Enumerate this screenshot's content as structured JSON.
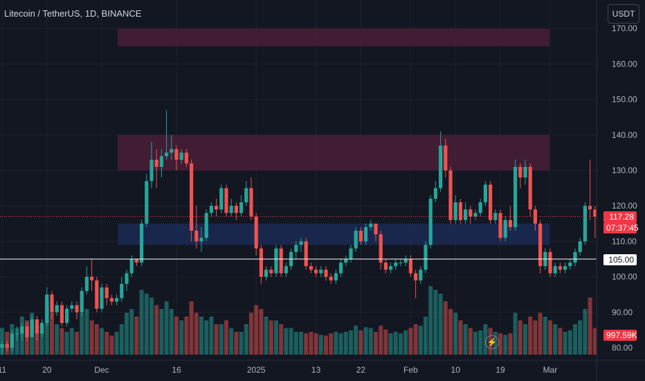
{
  "header": {
    "title": "Litecoin / TetherUS, 1D, BINANCE",
    "currency_button": "USDT"
  },
  "price_axis": {
    "labels": [
      "170.00",
      "160.00",
      "150.00",
      "140.00",
      "130.00",
      "120.00",
      "110.00",
      "100.00",
      "90.00",
      "80.00"
    ]
  },
  "time_axis": {
    "labels": [
      "11",
      "20",
      "Dec",
      "16",
      "2025",
      "13",
      "22",
      "Feb",
      "10",
      "19",
      "Mar"
    ]
  },
  "tags": {
    "last_price": "117.28",
    "countdown": "07:37:45",
    "line_price": "105.00",
    "volume": "997.59K"
  },
  "colors": {
    "background": "#131722",
    "up": "#26a69a",
    "down": "#ef5350",
    "supply_zone": "#4a1f37",
    "demand_zone": "#1c2a55"
  },
  "icons": {
    "alert": "lightning-icon"
  },
  "chart_data": {
    "type": "candlestick",
    "symbol": "Litecoin / TetherUS",
    "interval": "1D",
    "exchange": "BINANCE",
    "ylim": [
      80,
      173
    ],
    "horizontal_line": 105,
    "zones": [
      {
        "kind": "supply",
        "low": 165,
        "high": 170
      },
      {
        "kind": "supply",
        "low": 130,
        "high": 140
      },
      {
        "kind": "demand",
        "low": 109,
        "high": 115
      }
    ],
    "candles": [
      [
        80,
        81,
        78,
        82,
        0.35
      ],
      [
        81,
        80,
        79,
        82,
        0.3
      ],
      [
        80,
        84,
        79,
        85,
        0.4
      ],
      [
        84,
        84,
        82,
        86,
        0.35
      ],
      [
        84,
        86,
        82,
        87,
        0.5
      ],
      [
        86,
        83,
        82,
        87,
        0.45
      ],
      [
        83,
        88,
        83,
        89,
        0.55
      ],
      [
        88,
        84,
        82,
        89,
        0.4
      ],
      [
        84,
        87,
        83,
        88,
        0.38
      ],
      [
        87,
        95,
        86,
        97,
        0.7
      ],
      [
        95,
        90,
        88,
        96,
        0.55
      ],
      [
        90,
        92,
        89,
        93,
        0.4
      ],
      [
        92,
        87,
        86,
        93,
        0.35
      ],
      [
        87,
        91,
        86,
        92,
        0.3
      ],
      [
        91,
        92,
        90,
        93,
        0.35
      ],
      [
        92,
        90,
        88,
        93,
        0.3
      ],
      [
        90,
        96,
        89,
        97,
        0.55
      ],
      [
        96,
        100,
        95,
        103,
        0.6
      ],
      [
        100,
        99,
        96,
        105,
        0.45
      ],
      [
        99,
        91,
        90,
        100,
        0.4
      ],
      [
        91,
        97,
        90,
        98,
        0.35
      ],
      [
        97,
        94,
        92,
        98,
        0.3
      ],
      [
        94,
        93,
        92,
        95,
        0.25
      ],
      [
        93,
        94,
        92,
        95,
        0.3
      ],
      [
        94,
        98,
        93,
        100,
        0.4
      ],
      [
        98,
        101,
        96,
        102,
        0.55
      ],
      [
        101,
        105,
        100,
        106,
        0.6
      ],
      [
        105,
        104,
        103,
        105,
        0.5
      ],
      [
        104,
        115,
        103,
        116,
        0.85
      ],
      [
        115,
        127,
        114,
        129,
        0.8
      ],
      [
        127,
        133,
        125,
        138,
        0.75
      ],
      [
        133,
        131,
        125,
        136,
        0.65
      ],
      [
        131,
        134,
        128,
        136,
        0.6
      ],
      [
        134,
        135,
        133,
        147,
        0.7
      ],
      [
        135,
        136,
        133,
        140,
        0.6
      ],
      [
        136,
        133,
        130,
        137,
        0.5
      ],
      [
        133,
        135,
        132,
        136,
        0.45
      ],
      [
        135,
        132,
        131,
        136,
        0.5
      ],
      [
        132,
        113,
        110,
        133,
        0.7
      ],
      [
        113,
        110,
        108,
        120,
        0.55
      ],
      [
        110,
        111,
        107,
        114,
        0.5
      ],
      [
        111,
        118,
        110,
        119,
        0.45
      ],
      [
        118,
        120,
        117,
        121,
        0.5
      ],
      [
        120,
        119,
        117,
        122,
        0.4
      ],
      [
        119,
        125,
        118,
        126,
        0.4
      ],
      [
        125,
        118,
        117,
        126,
        0.45
      ],
      [
        118,
        120,
        117,
        122,
        0.35
      ],
      [
        120,
        118,
        116,
        121,
        0.3
      ],
      [
        118,
        121,
        117,
        123,
        0.3
      ],
      [
        121,
        125,
        120,
        127,
        0.4
      ],
      [
        125,
        117,
        116,
        128,
        0.55
      ],
      [
        117,
        108,
        106,
        118,
        0.65
      ],
      [
        108,
        100,
        98,
        109,
        0.6
      ],
      [
        100,
        102,
        99,
        103,
        0.5
      ],
      [
        102,
        101,
        100,
        103,
        0.45
      ],
      [
        101,
        108,
        100,
        109,
        0.45
      ],
      [
        108,
        101,
        100,
        109,
        0.4
      ],
      [
        101,
        103,
        100,
        104,
        0.35
      ],
      [
        103,
        107,
        102,
        108,
        0.35
      ],
      [
        107,
        109,
        105,
        110,
        0.3
      ],
      [
        109,
        110,
        107,
        111,
        0.3
      ],
      [
        110,
        103,
        102,
        111,
        0.28
      ],
      [
        103,
        102,
        101,
        104,
        0.3
      ],
      [
        102,
        101,
        100,
        103,
        0.28
      ],
      [
        101,
        102,
        100,
        103,
        0.26
      ],
      [
        102,
        100,
        99,
        103,
        0.25
      ],
      [
        100,
        99,
        98,
        101,
        0.28
      ],
      [
        99,
        101,
        98,
        102,
        0.3
      ],
      [
        101,
        104,
        100,
        105,
        0.28
      ],
      [
        104,
        105,
        103,
        106,
        0.3
      ],
      [
        105,
        108,
        104,
        109,
        0.32
      ],
      [
        108,
        113,
        107,
        114,
        0.38
      ],
      [
        113,
        110,
        109,
        114,
        0.32
      ],
      [
        110,
        114,
        109,
        115,
        0.36
      ],
      [
        114,
        115,
        113,
        116,
        0.35
      ],
      [
        115,
        112,
        110,
        115,
        0.3
      ],
      [
        112,
        104,
        102,
        113,
        0.38
      ],
      [
        104,
        102,
        101,
        105,
        0.33
      ],
      [
        102,
        103,
        101,
        104,
        0.28
      ],
      [
        103,
        104,
        102,
        105,
        0.3
      ],
      [
        104,
        104,
        103,
        105,
        0.28
      ],
      [
        104,
        105,
        103,
        106,
        0.32
      ],
      [
        105,
        101,
        100,
        106,
        0.35
      ],
      [
        101,
        99,
        94,
        102,
        0.4
      ],
      [
        99,
        102,
        98,
        103,
        0.38
      ],
      [
        102,
        109,
        101,
        110,
        0.5
      ],
      [
        109,
        122,
        108,
        123,
        0.9
      ],
      [
        122,
        125,
        121,
        127,
        0.85
      ],
      [
        125,
        137,
        124,
        141,
        0.8
      ],
      [
        137,
        130,
        128,
        139,
        0.7
      ],
      [
        130,
        116,
        115,
        131,
        0.6
      ],
      [
        116,
        121,
        115,
        123,
        0.55
      ],
      [
        121,
        116,
        115,
        122,
        0.45
      ],
      [
        116,
        119,
        115,
        121,
        0.4
      ],
      [
        119,
        117,
        115,
        120,
        0.35
      ],
      [
        117,
        118,
        116,
        119,
        0.3
      ],
      [
        118,
        121,
        117,
        122,
        0.32
      ],
      [
        121,
        126,
        120,
        127,
        0.4
      ],
      [
        126,
        116,
        115,
        127,
        0.35
      ],
      [
        116,
        118,
        115,
        119,
        0.3
      ],
      [
        118,
        111,
        110,
        119,
        0.28
      ],
      [
        111,
        116,
        110,
        117,
        0.26
      ],
      [
        116,
        114,
        113,
        120,
        0.28
      ],
      [
        114,
        131,
        113,
        133,
        0.55
      ],
      [
        131,
        128,
        125,
        132,
        0.45
      ],
      [
        128,
        131,
        126,
        133,
        0.4
      ],
      [
        131,
        119,
        117,
        132,
        0.5
      ],
      [
        119,
        115,
        113,
        120,
        0.45
      ],
      [
        115,
        103,
        101,
        116,
        0.55
      ],
      [
        103,
        107,
        102,
        108,
        0.5
      ],
      [
        107,
        101,
        100,
        108,
        0.45
      ],
      [
        101,
        103,
        100,
        104,
        0.4
      ],
      [
        103,
        102,
        101,
        104,
        0.35
      ],
      [
        102,
        103,
        101,
        104,
        0.3
      ],
      [
        103,
        104,
        102,
        105,
        0.32
      ],
      [
        104,
        107,
        103,
        108,
        0.4
      ],
      [
        107,
        110,
        106,
        111,
        0.45
      ],
      [
        110,
        120,
        109,
        121,
        0.6
      ],
      [
        120,
        119,
        116,
        133,
        0.75
      ],
      [
        119,
        117,
        111,
        120,
        0.35
      ]
    ],
    "x_ticks": [
      {
        "label": "11",
        "index": 0
      },
      {
        "label": "20",
        "index": 9
      },
      {
        "label": "Dec",
        "index": 20
      },
      {
        "label": "16",
        "index": 35
      },
      {
        "label": "2025",
        "index": 51
      },
      {
        "label": "13",
        "index": 63
      },
      {
        "label": "22",
        "index": 72
      },
      {
        "label": "Feb",
        "index": 82
      },
      {
        "label": "10",
        "index": 91
      },
      {
        "label": "19",
        "index": 100
      },
      {
        "label": "Mar",
        "index": 110
      }
    ]
  }
}
